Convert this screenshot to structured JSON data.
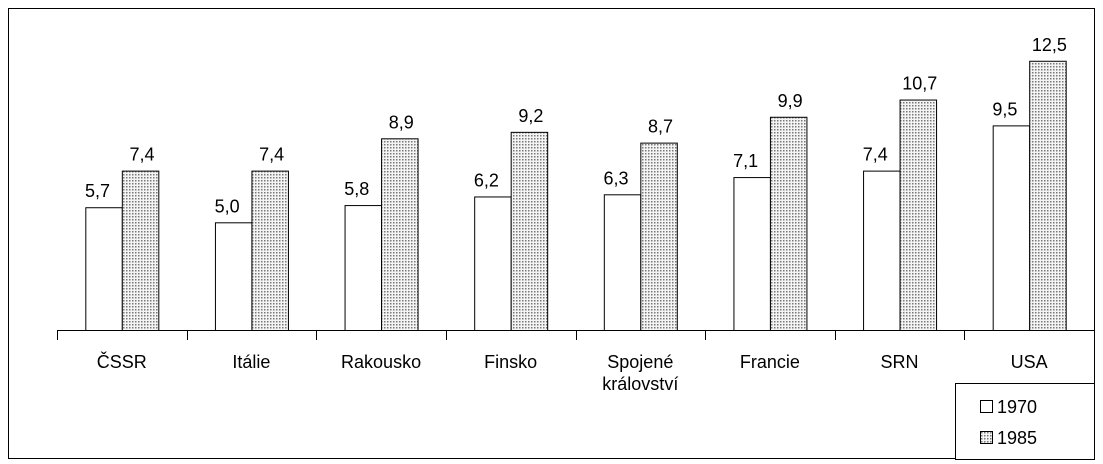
{
  "chart_data": {
    "type": "bar",
    "categories": [
      "ČSSR",
      "Itálie",
      "Rakousko",
      "Finsko",
      "Spojené království",
      "Francie",
      "SRN",
      "USA"
    ],
    "series": [
      {
        "name": "1970",
        "color": "#ffffff",
        "values": [
          5.7,
          5.0,
          5.8,
          6.2,
          6.3,
          7.1,
          7.4,
          9.5
        ],
        "value_labels": [
          "5,7",
          "5,0",
          "5,8",
          "6,2",
          "6,3",
          "7,1",
          "7,4",
          "9,5"
        ]
      },
      {
        "name": "1985",
        "color": "#c8c8c8",
        "values": [
          7.4,
          7.4,
          8.9,
          9.2,
          8.7,
          9.9,
          10.7,
          12.5
        ],
        "value_labels": [
          "7,4",
          "7,4",
          "8,9",
          "9,2",
          "8,7",
          "9,9",
          "10,7",
          "12,5"
        ]
      }
    ],
    "ylim": [
      0,
      13
    ],
    "legend": "bottom-right"
  }
}
